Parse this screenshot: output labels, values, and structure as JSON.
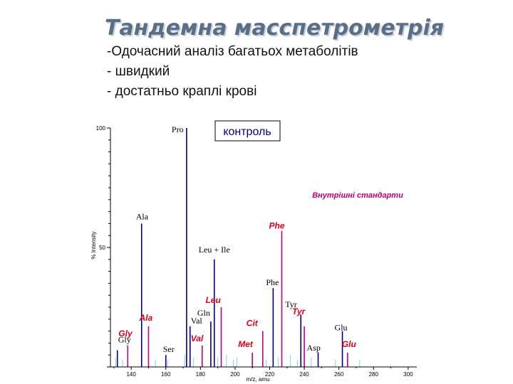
{
  "slide": {
    "title": "Тандемна масспетрометрія",
    "bullets": [
      "-Одочасний аналіз багатьох метаболітів",
      "- швидкий",
      "- достатньо краплі крові"
    ]
  },
  "chart_data": {
    "type": "bar",
    "xlabel": "m/z, amu",
    "ylabel": "% Intensity",
    "xlim": [
      128,
      305
    ],
    "ylim": [
      0,
      100
    ],
    "x_ticks": [
      140,
      160,
      180,
      200,
      220,
      240,
      260,
      280,
      300
    ],
    "y_ticks": [
      100,
      50
    ],
    "annotations": {
      "control_box": "контроль",
      "internal_standards": "Внутрішні стандарти"
    },
    "colors": {
      "analyte": "#000080",
      "standard": "#c0007a",
      "noise": "#7fd4e8",
      "annotation_red": "#e0001e"
    },
    "series": [
      {
        "points": [
          {
            "x": 172,
            "y": 100,
            "label": "Pro"
          },
          {
            "x": 146,
            "y": 60,
            "label": "Ala"
          },
          {
            "x": 188,
            "y": 45,
            "label": "Leu + Ile"
          },
          {
            "x": 222,
            "y": 33,
            "label": "Phe"
          },
          {
            "x": 186,
            "y": 19,
            "label": "Gln"
          },
          {
            "x": 174,
            "y": 17,
            "label": "Val"
          },
          {
            "x": 238,
            "y": 22,
            "label": "Tyr"
          },
          {
            "x": 262,
            "y": 15,
            "label": "Glu"
          },
          {
            "x": 248,
            "y": 6,
            "label": "Asp"
          },
          {
            "x": 132,
            "y": 7,
            "label": "Gly"
          },
          {
            "x": 160,
            "y": 5,
            "label": "Ser"
          }
        ]
      },
      {
        "points": [
          {
            "x": 227,
            "y": 57,
            "label": "Phe"
          },
          {
            "x": 192,
            "y": 25,
            "label": "Leu"
          },
          {
            "x": 150,
            "y": 17,
            "label": "Ala"
          },
          {
            "x": 240,
            "y": 17,
            "label": "Tyr"
          },
          {
            "x": 216,
            "y": 15,
            "label": "Cit"
          },
          {
            "x": 138,
            "y": 9,
            "label": "Gly"
          },
          {
            "x": 181,
            "y": 9,
            "label": "Val"
          },
          {
            "x": 210,
            "y": 6,
            "label": "Met"
          },
          {
            "x": 265,
            "y": 6,
            "label": "Glu"
          }
        ]
      },
      {
        "points": [
          {
            "x": 131,
            "y": 4
          },
          {
            "x": 135,
            "y": 3
          },
          {
            "x": 154,
            "y": 3
          },
          {
            "x": 161,
            "y": 3
          },
          {
            "x": 171,
            "y": 5
          },
          {
            "x": 176,
            "y": 4
          },
          {
            "x": 190,
            "y": 4
          },
          {
            "x": 195,
            "y": 5
          },
          {
            "x": 199,
            "y": 3
          },
          {
            "x": 201,
            "y": 4
          },
          {
            "x": 218,
            "y": 3
          },
          {
            "x": 225,
            "y": 4
          },
          {
            "x": 232,
            "y": 5
          },
          {
            "x": 236,
            "y": 3
          },
          {
            "x": 244,
            "y": 4
          },
          {
            "x": 258,
            "y": 3
          },
          {
            "x": 272,
            "y": 3
          }
        ]
      }
    ]
  }
}
